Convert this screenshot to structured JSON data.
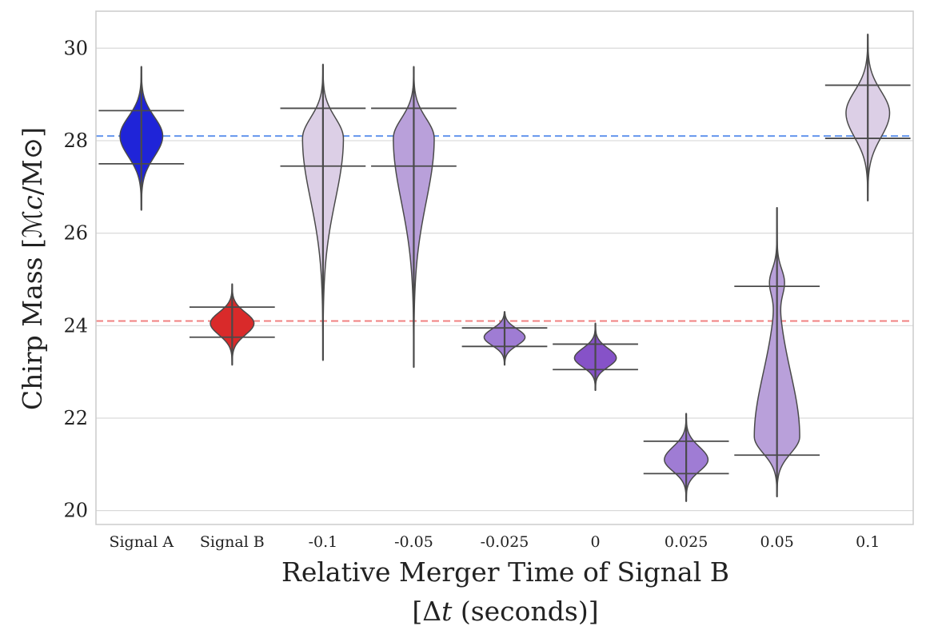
{
  "chart_data": {
    "type": "violin",
    "xlabel_line1": "Relative Merger Time of Signal B",
    "xlabel_line2": "[Δ𝑡 (seconds)]",
    "ylabel": "Chirp Mass [ℳ𝑐/M⊙]",
    "ylim": [
      19.7,
      30.8
    ],
    "yticks": [
      "20",
      "22",
      "24",
      "26",
      "28",
      "30"
    ],
    "grid": true,
    "reference_lines": [
      {
        "name": "Signal A true chirp mass",
        "y": 28.1,
        "color": "#6495ed"
      },
      {
        "name": "Signal B true chirp mass",
        "y": 24.1,
        "color": "#f08080"
      }
    ],
    "categories": [
      "Signal A",
      "Signal B",
      "-0.1",
      "-0.05",
      "-0.025",
      "0",
      "0.025",
      "0.05",
      "0.1"
    ],
    "violins": [
      {
        "category": "Signal A",
        "color": "#1f24d8",
        "min": 26.5,
        "max": 29.6,
        "q_low": 27.5,
        "q_high": 28.65,
        "peak": 28.1,
        "width": 0.47
      },
      {
        "category": "Signal B",
        "color": "#d92a2a",
        "min": 23.15,
        "max": 24.9,
        "q_low": 23.75,
        "q_high": 24.4,
        "peak": 24.05,
        "width": 0.48
      },
      {
        "category": "-0.1",
        "color": "#dccfe6",
        "min": 23.25,
        "max": 29.65,
        "q_low": 27.45,
        "q_high": 28.7,
        "peak": 28.05,
        "width": 0.45
      },
      {
        "category": "-0.05",
        "color": "#b9a0da",
        "min": 23.1,
        "max": 29.6,
        "q_low": 27.45,
        "q_high": 28.7,
        "peak": 28.05,
        "width": 0.45
      },
      {
        "category": "-0.025",
        "color": "#9f7cd4",
        "min": 23.15,
        "max": 24.3,
        "q_low": 23.55,
        "q_high": 23.95,
        "peak": 23.75,
        "width": 0.45
      },
      {
        "category": "0",
        "color": "#8652c8",
        "min": 22.6,
        "max": 24.05,
        "q_low": 23.05,
        "q_high": 23.6,
        "peak": 23.3,
        "width": 0.46
      },
      {
        "category": "0.025",
        "color": "#9f7cd4",
        "min": 20.2,
        "max": 22.1,
        "q_low": 20.8,
        "q_high": 21.5,
        "peak": 21.1,
        "width": 0.48
      },
      {
        "category": "0.05",
        "color": "#b9a0da",
        "min": 20.3,
        "max": 26.55,
        "q_low": 21.2,
        "q_high": 24.85,
        "peak": 21.6,
        "width": 0.5
      },
      {
        "category": "0.1",
        "color": "#dccfe6",
        "min": 26.7,
        "max": 30.3,
        "q_low": 28.05,
        "q_high": 29.2,
        "peak": 28.6,
        "width": 0.48
      }
    ]
  }
}
